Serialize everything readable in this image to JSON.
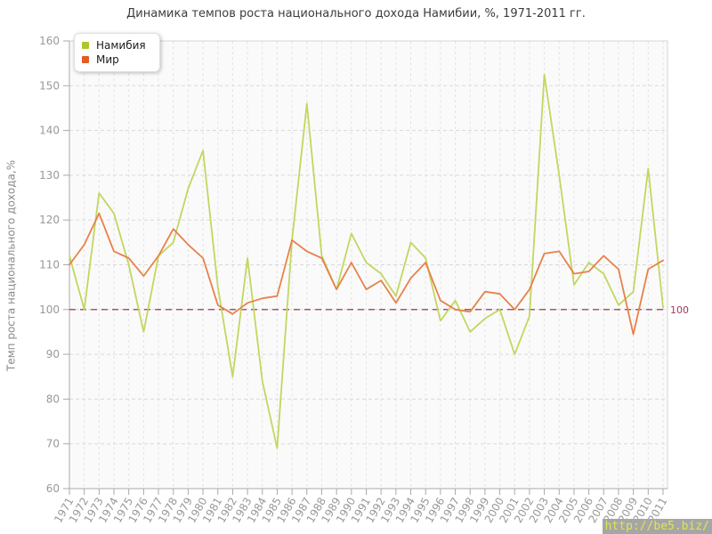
{
  "title": "Динамика темпов роста национального дохода Намибии, %, 1971-2011 гг.",
  "watermark": "http://be5.biz/",
  "legend": {
    "position": "top-left",
    "items": [
      {
        "label": "Намибия"
      },
      {
        "label": "Мир"
      }
    ]
  },
  "chart_data": {
    "type": "line",
    "title": "Динамика темпов роста национального дохода Намибии, %, 1971-2011 гг.",
    "xlabel": "",
    "ylabel": "Темп роста национального дохода,%",
    "ylim": [
      60,
      160
    ],
    "ytick_step": 10,
    "grid": true,
    "legend_position": "top-left",
    "x": [
      1971,
      1972,
      1973,
      1974,
      1975,
      1976,
      1977,
      1978,
      1979,
      1980,
      1981,
      1982,
      1983,
      1984,
      1985,
      1986,
      1987,
      1988,
      1989,
      1990,
      1991,
      1992,
      1993,
      1994,
      1995,
      1996,
      1997,
      1998,
      1999,
      2000,
      2001,
      2002,
      2003,
      2004,
      2005,
      2006,
      2007,
      2008,
      2009,
      2010,
      2011
    ],
    "series": [
      {
        "name": "Намибия",
        "slug": "namibia",
        "color": "#c1d75f",
        "marker_color": "#adc62c",
        "values": [
          112,
          100,
          126,
          121.5,
          110,
          95,
          112,
          115,
          127,
          135.5,
          105,
          85,
          111.5,
          84,
          69,
          115.5,
          146,
          112,
          104.5,
          117,
          110.5,
          108,
          103,
          115,
          111.5,
          97.5,
          102,
          95,
          98,
          100,
          90,
          98.5,
          152.5,
          130,
          105.5,
          110.5,
          108,
          101,
          104,
          131.5,
          100.5
        ]
      },
      {
        "name": "Мир",
        "slug": "mir",
        "color": "#e8814a",
        "marker_color": "#e25c24",
        "values": [
          110,
          114.5,
          121.5,
          113,
          111.5,
          107.5,
          112,
          118,
          114.5,
          111.5,
          101,
          99,
          101.5,
          102.5,
          103,
          115.5,
          113,
          111.5,
          104.5,
          110.5,
          104.5,
          106.5,
          101.5,
          107,
          110.5,
          102,
          100,
          99.5,
          104,
          103.5,
          100,
          104.5,
          112.5,
          113,
          108,
          108.5,
          112,
          109,
          94.5,
          109,
          111
        ]
      }
    ],
    "reference_line": {
      "y": 100,
      "label": "100",
      "color": "#8e2542",
      "label_color": "#a03a5b"
    },
    "colors": {
      "plot_background": "#fafafa",
      "h_gridline": "#d9d9d9",
      "v_gridline": "#e3e3e3",
      "frame": "#d4d4d4",
      "axis": "#a9a9a9",
      "tick_label": "#999999"
    }
  }
}
